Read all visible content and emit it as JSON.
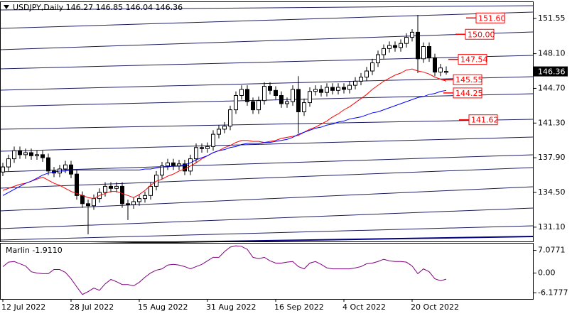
{
  "chart_data": [
    {
      "type": "candlestick",
      "title": "USDJPY,Daily  146.27 146.85 146.04 146.36",
      "categories": [
        "12 Jul 2022",
        null,
        null,
        null,
        null,
        null,
        null,
        null,
        null,
        null,
        null,
        null,
        "28 Jul 2022",
        null,
        null,
        null,
        null,
        null,
        null,
        null,
        null,
        null,
        null,
        null,
        "15 Aug 2022",
        null,
        null,
        null,
        null,
        null,
        null,
        null,
        null,
        null,
        null,
        null,
        "31 Aug 2022",
        null,
        null,
        null,
        null,
        null,
        null,
        null,
        null,
        null,
        null,
        null,
        "16 Sep 2022",
        null,
        null,
        null,
        null,
        null,
        null,
        null,
        null,
        null,
        null,
        null,
        "4 Oct 2022",
        null,
        null,
        null,
        null,
        null,
        null,
        null,
        null,
        null,
        null,
        null,
        "20 Oct 2022",
        null,
        null,
        null,
        null,
        null,
        null
      ],
      "open": [
        136.5,
        137.0,
        137.8,
        138.6,
        138.2,
        138.4,
        138.1,
        138.2,
        137.9,
        136.6,
        136.4,
        136.8,
        137.2,
        136.3,
        134.2,
        133.4,
        133.2,
        133.9,
        134.5,
        135.1,
        134.9,
        135.1,
        133.4,
        133.3,
        133.6,
        133.9,
        134.2,
        135.1,
        136.2,
        137.1,
        137.4,
        137.1,
        137.3,
        136.6,
        137.8,
        138.9,
        138.8,
        139.0,
        140.2,
        140.7,
        141.0,
        142.6,
        144.0,
        144.6,
        143.4,
        142.6,
        143.5,
        144.9,
        144.5,
        144.0,
        143.2,
        143.4,
        144.6,
        142.4,
        143.3,
        144.4,
        144.6,
        144.3,
        144.8,
        144.5,
        144.8,
        144.6,
        145.0,
        145.4,
        145.8,
        146.4,
        147.2,
        148.0,
        148.6,
        148.9,
        148.7,
        149.1,
        149.7,
        150.2,
        147.6,
        148.8,
        147.7,
        146.3,
        146.27
      ],
      "high": [
        137.4,
        138.2,
        139.0,
        139.0,
        138.8,
        138.8,
        138.6,
        138.6,
        138.3,
        137.0,
        137.2,
        137.6,
        137.6,
        136.7,
        134.6,
        133.8,
        134.3,
        134.9,
        135.5,
        135.5,
        135.5,
        135.5,
        133.8,
        134.0,
        134.3,
        134.6,
        135.5,
        136.6,
        137.5,
        137.8,
        137.8,
        137.7,
        137.7,
        138.2,
        139.3,
        139.3,
        139.4,
        140.6,
        141.1,
        141.4,
        143.0,
        144.4,
        145.0,
        145.0,
        143.8,
        143.9,
        145.3,
        145.3,
        144.9,
        144.4,
        143.8,
        145.0,
        145.9,
        143.7,
        144.8,
        145.0,
        145.0,
        145.2,
        145.2,
        145.2,
        145.2,
        145.4,
        145.8,
        146.2,
        146.8,
        147.6,
        148.4,
        149.0,
        149.3,
        149.3,
        149.5,
        150.1,
        150.5,
        151.9,
        149.2,
        149.2,
        148.1,
        147.1,
        146.85
      ],
      "low": [
        136.1,
        136.6,
        137.4,
        137.8,
        137.8,
        137.7,
        137.7,
        137.5,
        136.2,
        136.0,
        136.0,
        136.4,
        135.9,
        133.8,
        133.0,
        130.4,
        132.8,
        133.5,
        134.1,
        134.5,
        134.5,
        133.0,
        131.8,
        132.9,
        133.2,
        133.5,
        133.8,
        134.7,
        135.8,
        136.7,
        136.7,
        136.7,
        136.2,
        136.2,
        137.4,
        138.4,
        138.4,
        138.6,
        139.8,
        140.3,
        140.6,
        142.2,
        143.6,
        143.0,
        142.2,
        142.2,
        143.1,
        144.1,
        143.6,
        142.8,
        142.8,
        143.0,
        140.3,
        142.0,
        142.9,
        144.0,
        143.9,
        143.9,
        144.1,
        144.1,
        144.2,
        144.2,
        144.6,
        145.0,
        145.4,
        146.0,
        146.8,
        147.6,
        148.2,
        148.3,
        148.3,
        148.7,
        149.3,
        146.2,
        147.2,
        147.3,
        145.9,
        145.9,
        146.04
      ],
      "close": [
        137.0,
        137.8,
        138.6,
        138.2,
        138.4,
        138.1,
        138.2,
        137.9,
        136.6,
        136.4,
        136.8,
        137.2,
        136.3,
        134.2,
        133.4,
        133.2,
        133.9,
        134.5,
        135.1,
        134.9,
        135.1,
        133.4,
        133.3,
        133.6,
        133.9,
        134.2,
        135.1,
        136.2,
        137.1,
        137.4,
        137.1,
        137.3,
        136.6,
        137.8,
        138.9,
        138.8,
        139.0,
        140.2,
        140.7,
        141.0,
        142.6,
        144.0,
        144.6,
        143.4,
        142.6,
        143.5,
        144.9,
        144.5,
        144.0,
        143.2,
        143.4,
        144.6,
        142.4,
        143.3,
        144.4,
        144.6,
        144.3,
        144.8,
        144.5,
        144.8,
        144.6,
        145.0,
        145.4,
        145.8,
        146.4,
        147.2,
        148.0,
        148.6,
        148.9,
        148.7,
        149.1,
        149.7,
        150.2,
        147.6,
        148.8,
        147.7,
        146.3,
        146.7,
        146.36
      ],
      "series": [
        {
          "color": "#ff0000",
          "values": [
            134.7,
            134.9,
            135.1,
            135.3,
            135.4,
            135.6,
            135.8,
            136.0,
            135.7,
            135.4,
            135.2,
            134.9,
            134.6,
            134.4,
            134.2,
            134.0,
            133.9,
            134.2,
            134.4,
            134.6,
            134.6,
            134.4,
            134.2,
            134.0,
            134.3,
            134.7,
            135.2,
            135.6,
            135.8,
            136.1,
            136.3,
            136.6,
            136.8,
            137.1,
            137.4,
            137.8,
            138.1,
            138.4,
            138.6,
            138.9,
            139.1,
            139.4,
            139.6,
            139.6,
            139.5,
            139.5,
            139.4,
            139.5,
            139.6,
            139.8,
            139.9,
            140.0,
            140.1,
            140.4,
            140.7,
            140.9,
            141.2,
            141.5,
            141.9,
            142.2,
            142.6,
            142.9,
            143.3,
            143.7,
            144.1,
            144.6,
            145.0,
            145.4,
            145.7,
            146.0,
            146.2,
            146.5,
            146.6,
            146.4,
            146.3,
            146.1,
            145.8,
            145.6,
            145.4
          ]
        },
        {
          "color": "#0000ff",
          "values": [
            134.2,
            134.5,
            134.8,
            135.1,
            135.4,
            135.6,
            135.9,
            136.2,
            136.4,
            136.5,
            136.6,
            136.6,
            136.7,
            136.7,
            136.7,
            136.7,
            136.7,
            136.7,
            136.7,
            136.7,
            136.7,
            136.7,
            136.7,
            136.7,
            136.7,
            136.8,
            136.8,
            136.9,
            137.0,
            137.0,
            137.1,
            137.1,
            137.2,
            137.4,
            137.7,
            137.9,
            138.1,
            138.4,
            138.6,
            138.7,
            138.9,
            139.0,
            139.2,
            139.3,
            139.3,
            139.3,
            139.4,
            139.4,
            139.5,
            139.6,
            139.7,
            139.9,
            140.2,
            140.4,
            140.6,
            140.8,
            140.9,
            141.1,
            141.2,
            141.4,
            141.5,
            141.7,
            141.8,
            141.9,
            142.1,
            142.3,
            142.4,
            142.6,
            142.8,
            143.0,
            143.2,
            143.4,
            143.6,
            143.8,
            143.9,
            144.1,
            144.2,
            144.4,
            144.5
          ]
        }
      ],
      "ylim": [
        129.7,
        153.15
      ],
      "yticks": [
        {
          "value": 131.1,
          "label": "131.10"
        },
        {
          "value": 134.5,
          "label": "134.50"
        },
        {
          "value": 137.9,
          "label": "137.90"
        },
        {
          "value": 141.3,
          "label": "141.30"
        },
        {
          "value": 144.7,
          "label": "144.70"
        },
        {
          "value": 148.1,
          "label": "148.10"
        },
        151.55
      ],
      "annotations": [
        {
          "value": 151.6,
          "label": "151.60"
        },
        {
          "value": 150,
          "label": "150.00"
        },
        {
          "value": 147.54,
          "label": "147.54"
        },
        {
          "value": 145.55,
          "label": "145.55"
        },
        {
          "value": 144.25,
          "label": "144.25"
        },
        {
          "value": 141.62,
          "label": "141.62"
        }
      ],
      "last_price": 146.36
    },
    {
      "type": "line",
      "title": "Marlin -1.9110",
      "color": "#800080",
      "values": [
        2.0,
        3.4,
        3.6,
        2.9,
        2.2,
        0.4,
        0.0,
        -0.2,
        -0.2,
        1.1,
        1.1,
        0.2,
        -1.8,
        -4.3,
        -6.7,
        -5.8,
        -4.7,
        -5.4,
        -3.4,
        -2.0,
        -2.7,
        -3.6,
        -3.6,
        -4.0,
        -2.9,
        -1.3,
        0.0,
        0.9,
        1.3,
        2.5,
        2.7,
        2.5,
        2.0,
        1.3,
        2.0,
        2.7,
        3.8,
        4.9,
        4.9,
        6.7,
        8.1,
        8.5,
        8.3,
        7.4,
        4.9,
        4.5,
        4.9,
        3.8,
        3.1,
        3.1,
        3.4,
        3.6,
        2.0,
        1.3,
        3.1,
        3.6,
        2.7,
        1.6,
        1.3,
        1.3,
        1.3,
        1.3,
        1.6,
        2.0,
        2.9,
        3.1,
        3.6,
        4.3,
        3.8,
        3.6,
        3.6,
        3.4,
        2.2,
        -0.2,
        1.3,
        0.4,
        -1.8,
        -2.4,
        -1.911
      ],
      "ylim": [
        -8.1,
        9.2
      ],
      "yticks": [
        7.0771,
        {
          "value": 0,
          "label": "0.00"
        },
        -6.1777
      ]
    }
  ]
}
